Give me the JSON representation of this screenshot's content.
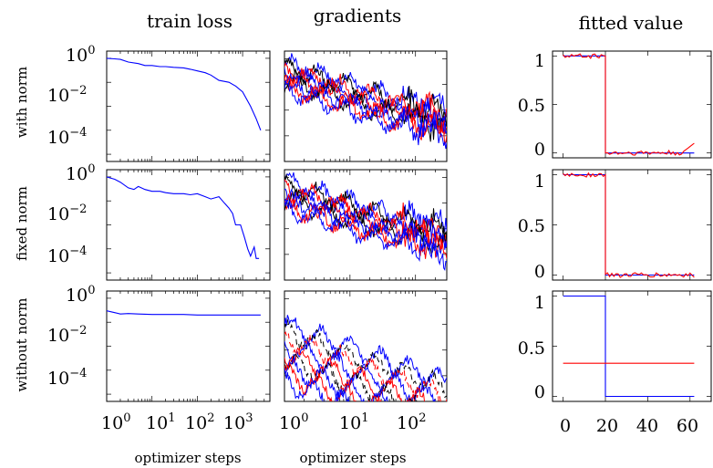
{
  "columns": {
    "train_loss": "train loss",
    "gradients": "gradients",
    "fitted_value": "fitted value"
  },
  "rows": [
    "with norm",
    "fixed norm",
    "without norm"
  ],
  "xlabels": {
    "train_loss": "optimizer steps",
    "gradients": "optimizer steps"
  },
  "colors": {
    "blue": "#0000ff",
    "red": "#ff0000",
    "black": "#000000"
  },
  "chart_data": [
    {
      "type": "line",
      "panel": "train loss",
      "row": "with norm",
      "xscale": "log",
      "yscale": "log",
      "xlim": [
        1,
        4000
      ],
      "ylim": [
        5e-05,
        2
      ],
      "series": [
        {
          "color": "blue",
          "x": [
            1,
            1.5,
            2,
            3,
            5,
            7,
            10,
            15,
            20,
            30,
            50,
            70,
            100,
            150,
            200,
            300,
            500,
            700,
            1000,
            1500,
            2000,
            2500
          ],
          "y": [
            1,
            0.95,
            0.9,
            0.7,
            0.6,
            0.5,
            0.5,
            0.45,
            0.45,
            0.42,
            0.4,
            0.35,
            0.3,
            0.25,
            0.2,
            0.12,
            0.1,
            0.07,
            0.04,
            0.01,
            0.003,
            0.001
          ]
        }
      ]
    },
    {
      "type": "line",
      "panel": "train loss",
      "row": "fixed norm",
      "xscale": "log",
      "yscale": "log",
      "xlim": [
        1,
        4000
      ],
      "ylim": [
        5e-05,
        2
      ],
      "series": [
        {
          "color": "blue",
          "x": [
            1,
            1.5,
            2,
            3,
            4,
            5,
            7,
            10,
            15,
            20,
            30,
            50,
            70,
            100,
            150,
            200,
            300,
            400,
            500,
            600,
            700,
            900,
            1100,
            1300,
            1500,
            1800,
            2000,
            2300
          ],
          "y": [
            1,
            0.8,
            0.6,
            0.35,
            0.3,
            0.4,
            0.3,
            0.25,
            0.25,
            0.22,
            0.2,
            0.2,
            0.18,
            0.2,
            0.15,
            0.12,
            0.15,
            0.08,
            0.05,
            0.03,
            0.01,
            0.01,
            0.003,
            0.001,
            0.0005,
            0.0012,
            0.0004,
            0.0004
          ]
        }
      ]
    },
    {
      "type": "line",
      "panel": "train loss",
      "row": "without norm",
      "xscale": "log",
      "yscale": "log",
      "xlim": [
        1,
        4000
      ],
      "ylim": [
        5e-05,
        2
      ],
      "series": [
        {
          "color": "blue",
          "x": [
            1,
            1.5,
            2,
            3,
            5,
            10,
            20,
            50,
            100,
            300,
            1000,
            2500
          ],
          "y": [
            0.3,
            0.25,
            0.22,
            0.23,
            0.22,
            0.21,
            0.21,
            0.21,
            0.2,
            0.2,
            0.2,
            0.2
          ]
        }
      ]
    },
    {
      "type": "line",
      "panel": "gradients",
      "row": "with norm",
      "xscale": "log",
      "yscale": "log",
      "xlim": [
        1,
        300
      ],
      "ylim": [
        0.0001,
        2
      ]
    },
    {
      "type": "line",
      "panel": "gradients",
      "row": "fixed norm",
      "xscale": "log",
      "yscale": "log",
      "xlim": [
        1,
        300
      ],
      "ylim": [
        0.0001,
        2
      ]
    },
    {
      "type": "line",
      "panel": "gradients",
      "row": "without norm",
      "xscale": "log",
      "yscale": "log",
      "xlim": [
        1,
        300
      ],
      "ylim": [
        0.0001,
        2
      ]
    },
    {
      "type": "line",
      "panel": "fitted value",
      "row": "with norm",
      "xlim": [
        -5,
        70
      ],
      "ylim": [
        -0.05,
        1.05
      ],
      "jump_at": 20,
      "series": [
        {
          "color": "blue",
          "x": [
            0,
            20,
            20,
            62
          ],
          "y": [
            1,
            1,
            0,
            0
          ]
        },
        {
          "color": "red",
          "noisy": true,
          "level_left": 1,
          "level_right": 0,
          "end_value": 0.1
        }
      ]
    },
    {
      "type": "line",
      "panel": "fitted value",
      "row": "fixed norm",
      "xlim": [
        -5,
        70
      ],
      "ylim": [
        -0.05,
        1.05
      ],
      "jump_at": 20,
      "series": [
        {
          "color": "blue",
          "x": [
            0,
            20,
            20,
            62
          ],
          "y": [
            1,
            1,
            0,
            0
          ]
        },
        {
          "color": "red",
          "noisy": true,
          "level_left": 1,
          "level_right": 0
        }
      ]
    },
    {
      "type": "line",
      "panel": "fitted value",
      "row": "without norm",
      "xlim": [
        -5,
        70
      ],
      "ylim": [
        -0.05,
        1.05
      ],
      "series": [
        {
          "color": "blue",
          "x": [
            0,
            20,
            20,
            62
          ],
          "y": [
            1,
            1,
            0,
            0
          ]
        },
        {
          "color": "red",
          "x": [
            0,
            62
          ],
          "y": [
            0.33,
            0.33
          ]
        }
      ]
    }
  ],
  "ticks": {
    "loss_y": [
      "10",
      "10",
      "10"
    ],
    "loss_y_exp": [
      "0",
      "−2",
      "−4"
    ],
    "loss_x": [
      "10",
      "10",
      "10",
      "10"
    ],
    "loss_x_exp": [
      "0",
      "1",
      "2",
      "3"
    ],
    "grad_x": [
      "10",
      "10",
      "10"
    ],
    "grad_x_exp": [
      "0",
      "1",
      "2"
    ],
    "fit_y": [
      "1",
      "0.5",
      "0"
    ],
    "fit_x": [
      "0",
      "20",
      "40",
      "60"
    ]
  }
}
